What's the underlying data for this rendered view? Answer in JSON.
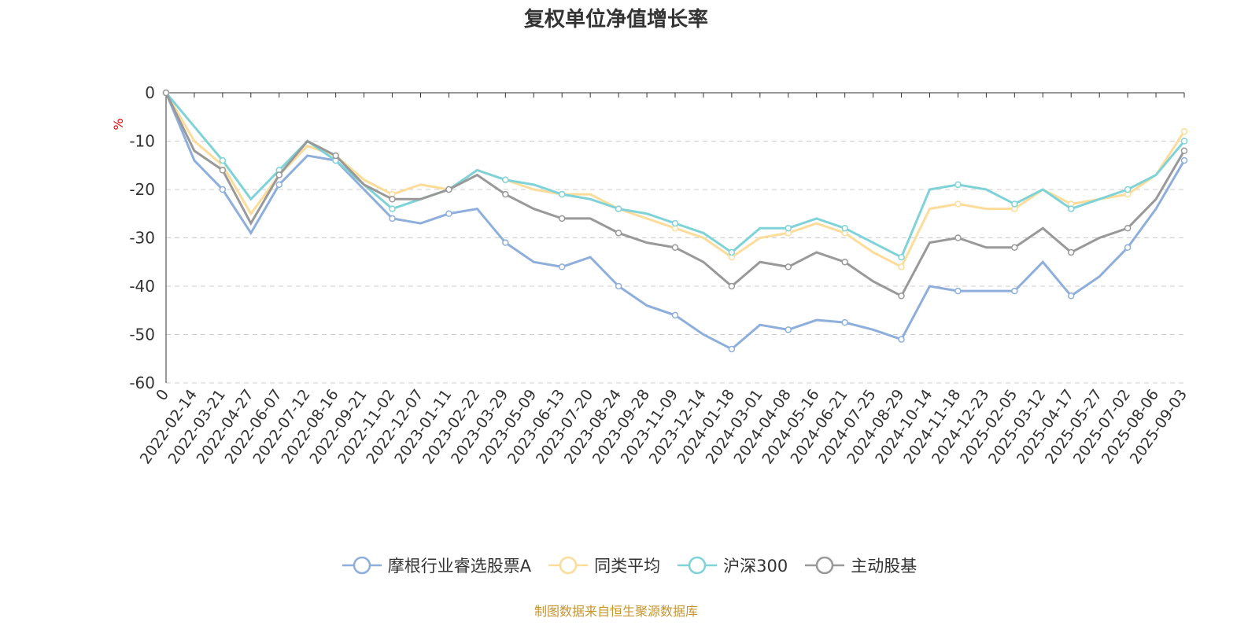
{
  "chart_data": {
    "type": "line",
    "title": "复权单位净值增长率",
    "ylabel": "%",
    "ylim": [
      -60,
      0
    ],
    "yticks": [
      0,
      -10,
      -20,
      -30,
      -40,
      -50,
      -60
    ],
    "grid": true,
    "legend_position": "bottom",
    "categories": [
      "0",
      "2022-02-14",
      "2022-03-21",
      "2022-04-27",
      "2022-06-07",
      "2022-07-12",
      "2022-08-16",
      "2022-09-21",
      "2022-11-02",
      "2022-12-07",
      "2023-01-11",
      "2023-02-22",
      "2023-03-29",
      "2023-05-09",
      "2023-06-13",
      "2023-07-20",
      "2023-08-24",
      "2023-09-28",
      "2023-11-09",
      "2023-12-14",
      "2024-01-18",
      "2024-03-01",
      "2024-04-08",
      "2024-05-16",
      "2024-06-21",
      "2024-07-25",
      "2024-08-29",
      "2024-10-14",
      "2024-11-18",
      "2024-12-23",
      "2025-02-05",
      "2025-03-12",
      "2025-04-17",
      "2025-05-27",
      "2025-07-02",
      "2025-08-06",
      "2025-09-03"
    ],
    "series": [
      {
        "name": "摩根行业睿选股票A",
        "color": "#8eaedc",
        "values": [
          0,
          -14,
          -20,
          -29,
          -19,
          -13,
          -14,
          -20,
          -26,
          -27,
          -25,
          -24,
          -31,
          -35,
          -36,
          -34,
          -40,
          -44,
          -46,
          -50,
          -53,
          -48,
          -49,
          -47,
          -47.5,
          -49,
          -51,
          -40,
          -41,
          -41,
          -41,
          -35,
          -42,
          -38,
          -32,
          -24,
          -14
        ]
      },
      {
        "name": "同类平均",
        "color": "#fddc9a",
        "values": [
          0,
          -10,
          -15,
          -25,
          -17,
          -11,
          -13,
          -18,
          -21,
          -19,
          -20,
          -16,
          -18,
          -20,
          -21,
          -21,
          -24,
          -26,
          -28,
          -30,
          -34,
          -30,
          -29,
          -27,
          -29,
          -33,
          -36,
          -24,
          -23,
          -24,
          -24,
          -20,
          -23,
          -22,
          -21,
          -17,
          -8
        ]
      },
      {
        "name": "沪深300",
        "color": "#7fd3d8",
        "values": [
          0,
          -7,
          -14,
          -22,
          -16,
          -10,
          -14,
          -19,
          -24,
          -22,
          -20,
          -16,
          -18,
          -19,
          -21,
          -22,
          -24,
          -25,
          -27,
          -29,
          -33,
          -28,
          -28,
          -26,
          -28,
          -31,
          -34,
          -20,
          -19,
          -20,
          -23,
          -20,
          -24,
          -22,
          -20,
          -17,
          -10
        ]
      },
      {
        "name": "主动股基",
        "color": "#999999",
        "values": [
          0,
          -12,
          -16,
          -27,
          -17,
          -10,
          -13,
          -19,
          -22,
          -22,
          -20,
          -17,
          -21,
          -24,
          -26,
          -26,
          -29,
          -31,
          -32,
          -35,
          -40,
          -35,
          -36,
          -33,
          -35,
          -39,
          -42,
          -31,
          -30,
          -32,
          -32,
          -28,
          -33,
          -30,
          -28,
          -22,
          -12
        ]
      }
    ]
  },
  "footer": "制图数据来自恒生聚源数据库"
}
